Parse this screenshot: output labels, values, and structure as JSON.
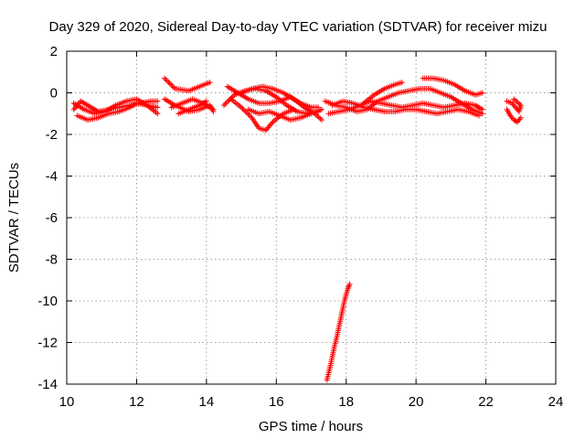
{
  "chart_data": {
    "type": "scatter",
    "title": "Day 329 of 2020, Sidereal Day-to-day VTEC variation (SDTVAR) for receiver mizu",
    "xlabel": "GPS time / hours",
    "ylabel": "SDTVAR / TECUs",
    "xlim": [
      10,
      24
    ],
    "ylim": [
      -14,
      2
    ],
    "x_ticks": [
      10,
      12,
      14,
      16,
      18,
      20,
      22,
      24
    ],
    "y_ticks": [
      2,
      0,
      -2,
      -4,
      -6,
      -8,
      -10,
      -12,
      -14
    ],
    "grid": true,
    "marker": "plus",
    "series": [
      {
        "name": "SDTVAR",
        "color": "#ff0000",
        "tracks": [
          [
            [
              10.2,
              -0.8
            ],
            [
              10.4,
              -0.4
            ],
            [
              10.6,
              -0.6
            ],
            [
              10.9,
              -0.9
            ],
            [
              11.2,
              -0.8
            ],
            [
              11.5,
              -0.7
            ],
            [
              11.8,
              -0.6
            ],
            [
              12.1,
              -0.5
            ],
            [
              12.4,
              -0.4
            ],
            [
              12.6,
              -0.4
            ]
          ],
          [
            [
              10.3,
              -1.1
            ],
            [
              10.6,
              -1.3
            ],
            [
              10.9,
              -1.2
            ],
            [
              11.2,
              -1.0
            ],
            [
              11.5,
              -0.9
            ],
            [
              11.8,
              -0.7
            ],
            [
              12.0,
              -0.5
            ],
            [
              12.3,
              -0.6
            ],
            [
              12.6,
              -0.7
            ]
          ],
          [
            [
              10.2,
              -0.5
            ],
            [
              10.5,
              -0.8
            ],
            [
              10.8,
              -1.0
            ],
            [
              11.1,
              -0.9
            ],
            [
              11.4,
              -0.6
            ],
            [
              11.7,
              -0.4
            ],
            [
              12.0,
              -0.3
            ],
            [
              12.3,
              -0.6
            ],
            [
              12.6,
              -1.0
            ]
          ],
          [
            [
              12.8,
              0.7
            ],
            [
              13.1,
              0.2
            ],
            [
              13.5,
              0.1
            ],
            [
              13.8,
              0.3
            ],
            [
              14.1,
              0.5
            ]
          ],
          [
            [
              12.8,
              -0.3
            ],
            [
              13.1,
              -0.6
            ],
            [
              13.5,
              -0.9
            ],
            [
              13.8,
              -0.8
            ],
            [
              14.1,
              -0.6
            ],
            [
              14.2,
              -0.9
            ]
          ],
          [
            [
              13.0,
              -0.7
            ],
            [
              13.3,
              -0.5
            ],
            [
              13.6,
              -0.3
            ],
            [
              13.9,
              -0.5
            ],
            [
              14.2,
              -0.8
            ]
          ],
          [
            [
              13.2,
              -1.0
            ],
            [
              13.5,
              -0.8
            ],
            [
              13.8,
              -0.6
            ],
            [
              14.0,
              -0.4
            ]
          ],
          [
            [
              14.5,
              -0.6
            ],
            [
              14.8,
              -0.1
            ],
            [
              15.1,
              0.1
            ],
            [
              15.4,
              0.2
            ],
            [
              15.7,
              0.1
            ],
            [
              16.0,
              -0.2
            ],
            [
              16.3,
              -0.6
            ],
            [
              16.6,
              -0.9
            ],
            [
              16.9,
              -1.0
            ],
            [
              17.2,
              -0.9
            ]
          ],
          [
            [
              14.6,
              0.3
            ],
            [
              14.9,
              0.0
            ],
            [
              15.2,
              -0.3
            ],
            [
              15.5,
              -0.5
            ],
            [
              15.8,
              -0.5
            ],
            [
              16.1,
              -0.4
            ],
            [
              16.4,
              -0.2
            ],
            [
              16.7,
              -0.5
            ],
            [
              17.0,
              -0.7
            ],
            [
              17.2,
              -0.7
            ]
          ],
          [
            [
              14.7,
              -0.3
            ],
            [
              15.0,
              -0.7
            ],
            [
              15.3,
              -1.2
            ],
            [
              15.5,
              -1.7
            ],
            [
              15.7,
              -1.8
            ],
            [
              15.9,
              -1.4
            ],
            [
              16.2,
              -1.0
            ],
            [
              16.5,
              -0.8
            ]
          ],
          [
            [
              15.0,
              0.0
            ],
            [
              15.3,
              0.2
            ],
            [
              15.6,
              0.3
            ],
            [
              15.9,
              0.2
            ],
            [
              16.2,
              0.0
            ],
            [
              16.5,
              -0.3
            ],
            [
              16.8,
              -0.7
            ],
            [
              17.1,
              -1.0
            ],
            [
              17.3,
              -1.3
            ]
          ],
          [
            [
              15.2,
              -0.8
            ],
            [
              15.5,
              -1.0
            ],
            [
              15.8,
              -0.9
            ],
            [
              16.1,
              -1.1
            ],
            [
              16.4,
              -1.3
            ],
            [
              16.7,
              -1.2
            ],
            [
              17.0,
              -1.0
            ],
            [
              17.3,
              -0.8
            ]
          ],
          [
            [
              17.4,
              -0.4
            ],
            [
              17.7,
              -0.6
            ],
            [
              18.0,
              -0.7
            ],
            [
              18.3,
              -0.9
            ],
            [
              18.6,
              -0.8
            ],
            [
              18.9,
              -0.4
            ],
            [
              19.2,
              -0.2
            ],
            [
              19.5,
              0.0
            ],
            [
              19.8,
              0.1
            ],
            [
              20.1,
              0.2
            ],
            [
              20.4,
              0.2
            ],
            [
              20.7,
              0.0
            ],
            [
              21.0,
              -0.2
            ],
            [
              21.3,
              -0.5
            ],
            [
              21.6,
              -0.8
            ],
            [
              21.9,
              -1.0
            ]
          ],
          [
            [
              17.5,
              -1.0
            ],
            [
              17.8,
              -0.9
            ],
            [
              18.1,
              -0.8
            ],
            [
              18.4,
              -0.6
            ],
            [
              18.7,
              -0.4
            ],
            [
              19.0,
              -0.5
            ],
            [
              19.3,
              -0.6
            ],
            [
              19.6,
              -0.7
            ],
            [
              19.9,
              -0.6
            ],
            [
              20.2,
              -0.5
            ],
            [
              20.5,
              -0.6
            ],
            [
              20.8,
              -0.7
            ],
            [
              21.1,
              -0.6
            ],
            [
              21.4,
              -0.5
            ],
            [
              21.7,
              -0.6
            ],
            [
              21.9,
              -0.8
            ]
          ],
          [
            [
              17.6,
              -0.6
            ],
            [
              17.9,
              -0.4
            ],
            [
              18.2,
              -0.5
            ],
            [
              18.5,
              -0.7
            ],
            [
              18.8,
              -0.8
            ],
            [
              19.1,
              -0.9
            ],
            [
              19.4,
              -0.9
            ],
            [
              19.7,
              -0.8
            ],
            [
              20.0,
              -0.8
            ],
            [
              20.3,
              -0.9
            ],
            [
              20.6,
              -1.0
            ],
            [
              20.9,
              -0.9
            ],
            [
              21.2,
              -0.8
            ],
            [
              21.5,
              -0.9
            ],
            [
              21.8,
              -1.1
            ]
          ],
          [
            [
              18.5,
              -0.5
            ],
            [
              18.8,
              -0.1
            ],
            [
              19.1,
              0.2
            ],
            [
              19.4,
              0.4
            ],
            [
              19.6,
              0.5
            ]
          ],
          [
            [
              20.2,
              0.7
            ],
            [
              20.5,
              0.7
            ],
            [
              20.8,
              0.6
            ],
            [
              21.1,
              0.4
            ],
            [
              21.4,
              0.1
            ],
            [
              21.7,
              -0.1
            ],
            [
              21.9,
              0.0
            ]
          ],
          [
            [
              22.6,
              -0.8
            ],
            [
              22.7,
              -1.1
            ],
            [
              22.8,
              -1.3
            ],
            [
              22.9,
              -1.4
            ],
            [
              23.0,
              -1.2
            ]
          ],
          [
            [
              22.6,
              -0.4
            ],
            [
              22.75,
              -0.5
            ],
            [
              22.85,
              -0.7
            ],
            [
              22.95,
              -0.9
            ],
            [
              23.0,
              -0.6
            ],
            [
              22.8,
              -0.3
            ]
          ],
          [
            [
              17.45,
              -13.8
            ],
            [
              17.55,
              -13.1
            ],
            [
              17.65,
              -12.3
            ],
            [
              17.75,
              -11.6
            ],
            [
              17.85,
              -10.8
            ],
            [
              17.95,
              -10.0
            ],
            [
              18.05,
              -9.4
            ],
            [
              18.1,
              -9.2
            ]
          ]
        ]
      }
    ]
  }
}
